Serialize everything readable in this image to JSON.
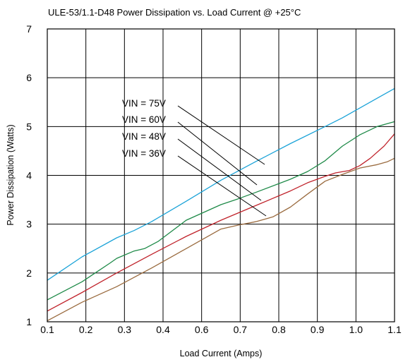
{
  "chart_data": {
    "type": "line",
    "title": "ULE-53/1.1-D48 Power Dissipation vs. Load Current @ +25°C",
    "xlabel": "Load Current (Amps)",
    "ylabel": "Power Dissipation (Watts)",
    "xlim": [
      0.1,
      1.1
    ],
    "ylim": [
      1,
      7
    ],
    "x_ticks": [
      "0.1",
      "0.2",
      "0.3",
      "0.4",
      "0.6",
      "0.7",
      "0.8",
      "0.9",
      "1.0",
      "1.1"
    ],
    "y_ticks": [
      "1",
      "2",
      "3",
      "4",
      "5",
      "6",
      "7"
    ],
    "grid": true,
    "series": [
      {
        "name": "VIN = 75V",
        "color": "#1ba3d8",
        "x": [
          0.1,
          0.2,
          0.3,
          0.35,
          0.4,
          0.5,
          0.6,
          0.7,
          0.8,
          0.9,
          0.95,
          1.0,
          1.05,
          1.1
        ],
        "y": [
          1.85,
          2.33,
          2.72,
          2.87,
          3.05,
          3.47,
          3.9,
          4.28,
          4.65,
          5.0,
          5.18,
          5.38,
          5.58,
          5.78
        ]
      },
      {
        "name": "VIN = 60V",
        "color": "#1e8a48",
        "x": [
          0.1,
          0.2,
          0.28,
          0.3,
          0.35,
          0.38,
          0.42,
          0.5,
          0.6,
          0.65,
          0.7,
          0.8,
          0.85,
          0.9,
          0.95,
          1.0,
          1.05,
          1.1
        ],
        "y": [
          1.45,
          1.82,
          2.2,
          2.3,
          2.45,
          2.5,
          2.65,
          3.08,
          3.4,
          3.52,
          3.65,
          3.92,
          4.08,
          4.3,
          4.6,
          4.83,
          5.0,
          5.1
        ]
      },
      {
        "name": "VIN = 48V",
        "color": "#c0232b",
        "x": [
          0.1,
          0.2,
          0.3,
          0.4,
          0.5,
          0.6,
          0.7,
          0.8,
          0.85,
          0.9,
          0.93,
          0.97,
          1.0,
          1.03,
          1.07,
          1.1
        ],
        "y": [
          1.22,
          1.6,
          2.0,
          2.38,
          2.75,
          3.08,
          3.38,
          3.68,
          3.85,
          3.98,
          4.05,
          4.1,
          4.2,
          4.35,
          4.6,
          4.85
        ]
      },
      {
        "name": "VIN = 36V",
        "color": "#9a6b3f",
        "x": [
          0.1,
          0.2,
          0.3,
          0.4,
          0.5,
          0.6,
          0.65,
          0.7,
          0.75,
          0.8,
          0.85,
          0.9,
          0.95,
          1.0,
          1.05,
          1.08,
          1.1
        ],
        "y": [
          1.02,
          1.4,
          1.72,
          2.1,
          2.5,
          2.9,
          2.98,
          3.05,
          3.15,
          3.35,
          3.62,
          3.88,
          4.02,
          4.15,
          4.22,
          4.28,
          4.35
        ]
      }
    ]
  }
}
